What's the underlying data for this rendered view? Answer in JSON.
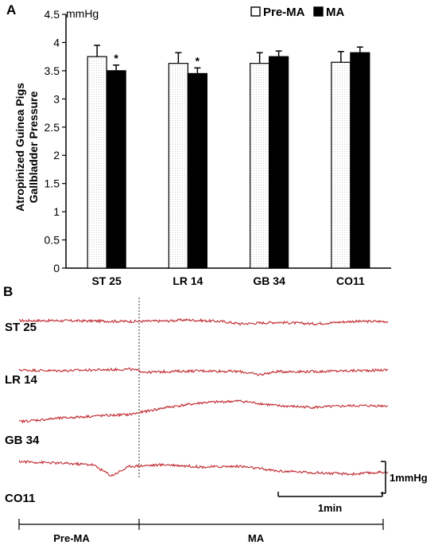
{
  "panel_a": {
    "label": "A",
    "unit": "mmHg",
    "ylabel_line1": "Atropinized Guinea Pigs",
    "ylabel_line2": "Gallbladder Pressure"
  },
  "panel_b": {
    "label": "B",
    "scale_y_label": "1mmHg",
    "scale_x_label": "1min",
    "phase_labels": [
      "Pre-MA",
      "MA"
    ]
  },
  "chart_data": [
    {
      "type": "bar",
      "title": "",
      "ylabel": "Atropinized Guinea Pigs Gallbladder Pressure",
      "yunit": "mmHg",
      "categories": [
        "ST 25",
        "LR 14",
        "GB 34",
        "CO11"
      ],
      "ylim": [
        0,
        4.5
      ],
      "yticks": [
        0,
        0.5,
        1,
        1.5,
        2,
        2.5,
        3,
        3.5,
        4,
        4.5
      ],
      "legend_position": "top-right",
      "series": [
        {
          "name": "Pre-MA",
          "values": [
            3.75,
            3.63,
            3.63,
            3.65
          ],
          "errors": [
            0.2,
            0.19,
            0.19,
            0.19
          ],
          "fill": "#ffffff"
        },
        {
          "name": "MA",
          "values": [
            3.5,
            3.45,
            3.75,
            3.82
          ],
          "errors": [
            0.1,
            0.1,
            0.1,
            0.1
          ],
          "fill": "#000000"
        }
      ],
      "annotations": [
        {
          "category": "ST 25",
          "series": "MA",
          "text": "*"
        },
        {
          "category": "LR 14",
          "series": "MA",
          "text": "*"
        }
      ]
    },
    {
      "type": "line",
      "title": "",
      "xlabel": "",
      "ylabel": "",
      "trace_color": "#c0282e",
      "traces": [
        {
          "name": "ST 25",
          "x": [
            0,
            0.1,
            0.2,
            0.3,
            0.4,
            0.45,
            0.5,
            0.55,
            0.6,
            0.7,
            0.8,
            0.9,
            1.0
          ],
          "y": [
            0,
            0,
            -0.02,
            -0.05,
            -0.02,
            0.05,
            0.0,
            -0.05,
            -0.2,
            -0.1,
            -0.2,
            -0.05,
            -0.05
          ]
        },
        {
          "name": "LR 14",
          "x": [
            0,
            0.1,
            0.2,
            0.3,
            0.35,
            0.4,
            0.5,
            0.6,
            0.65,
            0.7,
            0.8,
            0.9,
            1.0
          ],
          "y": [
            0,
            -0.05,
            0.0,
            0.05,
            -0.15,
            -0.1,
            -0.05,
            -0.1,
            -0.3,
            -0.1,
            -0.1,
            -0.05,
            0.0
          ]
        },
        {
          "name": "GB 34",
          "x": [
            0,
            0.1,
            0.2,
            0.3,
            0.4,
            0.5,
            0.6,
            0.7,
            0.8,
            0.9,
            1.0
          ],
          "y": [
            -0.5,
            -0.3,
            -0.15,
            -0.05,
            0.4,
            0.7,
            0.8,
            0.5,
            0.4,
            0.5,
            0.5
          ]
        },
        {
          "name": "CO11",
          "x": [
            0,
            0.1,
            0.2,
            0.25,
            0.3,
            0.4,
            0.5,
            0.6,
            0.7,
            0.8,
            0.9,
            1.0
          ],
          "y": [
            0.5,
            0.4,
            0.3,
            -0.4,
            0.2,
            0.3,
            0.15,
            0.2,
            -0.1,
            -0.2,
            -0.3,
            -0.15
          ]
        }
      ]
    }
  ]
}
